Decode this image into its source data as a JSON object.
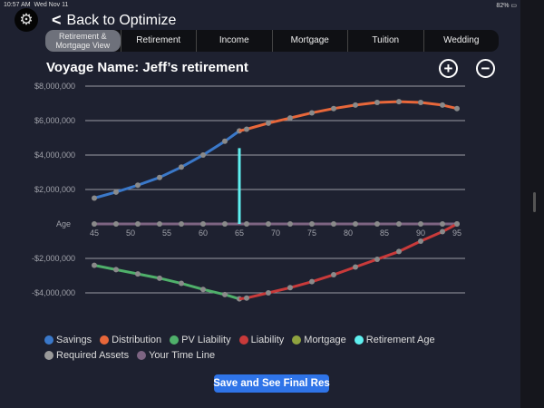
{
  "status": {
    "time": "10:57 AM",
    "date": "Wed Nov 11",
    "battery": "82%"
  },
  "header": {
    "back_label": "Back to Optimize",
    "settings_icon": "gear-icon"
  },
  "tabs": [
    {
      "label": "Retirement & Mortgage View"
    },
    {
      "label": "Retirement"
    },
    {
      "label": "Income"
    },
    {
      "label": "Mortgage"
    },
    {
      "label": "Tuition"
    },
    {
      "label": "Wedding"
    }
  ],
  "title": "Voyage Name: Jeff’s retirement",
  "zoom": {
    "in": "+",
    "out": "−"
  },
  "save_label": "Save and See Final Res",
  "colors": {
    "savings": "#3a78c9",
    "distribution": "#e8673a",
    "pv_liability": "#4fb06a",
    "liability": "#c93a3a",
    "mortgage": "#8fa33f",
    "retirement_age": "#5ff0f0",
    "required_assets": "#9a9a9a",
    "time_line": "#7d6482"
  },
  "chart_data": {
    "type": "line",
    "xlabel": "Age",
    "xlim": [
      45,
      95
    ],
    "ylim": [
      -5000000,
      8000000
    ],
    "x_ticks": [
      "45",
      "50",
      "55",
      "60",
      "65",
      "70",
      "75",
      "80",
      "85",
      "90",
      "95"
    ],
    "y_ticks": [
      {
        "v": 8000000,
        "l": "$8,000,000"
      },
      {
        "v": 6000000,
        "l": "$6,000,000"
      },
      {
        "v": 4000000,
        "l": "$4,000,000"
      },
      {
        "v": 2000000,
        "l": "$2,000,000"
      },
      {
        "v": 0,
        "l": "Age"
      },
      {
        "v": -2000000,
        "l": "-$2,000,000"
      },
      {
        "v": -4000000,
        "l": "-$4,000,000"
      }
    ],
    "series": [
      {
        "name": "Savings",
        "key": "savings",
        "x": [
          45,
          48,
          51,
          54,
          57,
          60,
          63,
          65
        ],
        "y": [
          1500000,
          1850000,
          2250000,
          2700000,
          3300000,
          4000000,
          4800000,
          5400000
        ]
      },
      {
        "name": "Distribution",
        "key": "distribution",
        "x": [
          65,
          66,
          69,
          72,
          75,
          78,
          81,
          84,
          87,
          90,
          93,
          95
        ],
        "y": [
          5400000,
          5500000,
          5850000,
          6150000,
          6450000,
          6700000,
          6900000,
          7050000,
          7100000,
          7050000,
          6900000,
          6700000
        ]
      },
      {
        "name": "PV Liability",
        "key": "pv_liability",
        "x": [
          45,
          48,
          51,
          54,
          57,
          60,
          63,
          65
        ],
        "y": [
          -2400000,
          -2650000,
          -2900000,
          -3150000,
          -3450000,
          -3800000,
          -4100000,
          -4350000
        ]
      },
      {
        "name": "Liability",
        "key": "liability",
        "x": [
          65,
          66,
          69,
          72,
          75,
          78,
          81,
          84,
          87,
          90,
          93,
          95
        ],
        "y": [
          -4350000,
          -4300000,
          -4000000,
          -3700000,
          -3350000,
          -2950000,
          -2500000,
          -2050000,
          -1600000,
          -1000000,
          -450000,
          0
        ]
      },
      {
        "name": "Mortgage",
        "key": "mortgage",
        "x": [],
        "y": []
      },
      {
        "name": "Retirement Age",
        "key": "retirement_age",
        "x": [
          65,
          65
        ],
        "y": [
          0,
          4400000
        ]
      },
      {
        "name": "Required Assets",
        "key": "required_assets",
        "x": [],
        "y": []
      },
      {
        "name": "Your Time Line",
        "key": "time_line",
        "x": [
          45,
          48,
          51,
          54,
          57,
          60,
          63,
          66,
          69,
          72,
          75,
          78,
          81,
          84,
          87,
          90,
          93,
          95
        ],
        "y": [
          0,
          0,
          0,
          0,
          0,
          0,
          0,
          0,
          0,
          0,
          0,
          0,
          0,
          0,
          0,
          0,
          0,
          0
        ]
      }
    ],
    "legend": [
      "Savings",
      "Distribution",
      "PV Liability",
      "Liability",
      "Mortgage",
      "Retirement Age",
      "Required Assets",
      "Your Time Line"
    ],
    "legend_placement": "bottom"
  }
}
